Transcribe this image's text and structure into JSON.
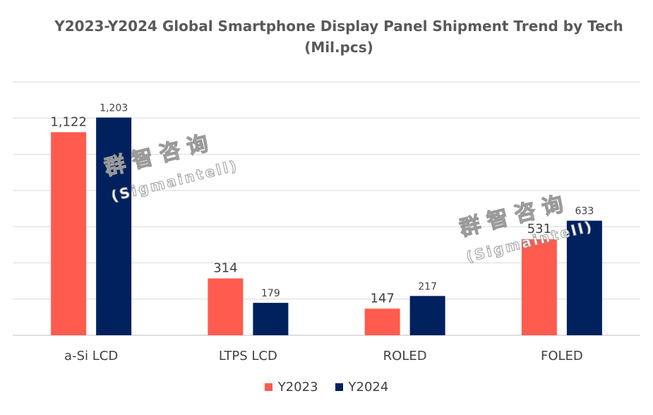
{
  "chart_data": {
    "type": "bar",
    "title_line1": "Y2023-Y2024 Global Smartphone Display Panel Shipment Trend by Tech",
    "title_line2": "(Mil.pcs)",
    "categories": [
      "a-Si LCD",
      "LTPS LCD",
      "ROLED",
      "FOLED"
    ],
    "series": [
      {
        "name": "Y2023",
        "values": [
          1122,
          314,
          147,
          531
        ],
        "labels": [
          "1,122",
          "314",
          "147",
          "531"
        ],
        "color": "#FF5B4F"
      },
      {
        "name": "Y2024",
        "values": [
          1203,
          179,
          217,
          633
        ],
        "labels": [
          "1,203",
          "179",
          "217",
          "633"
        ],
        "color": "#00215E"
      }
    ],
    "ylim": [
      0,
      1400
    ],
    "grid": true,
    "legend_position": "bottom"
  },
  "watermark": {
    "chinese": "群智咨询",
    "english": "(Sigmaintell)"
  }
}
